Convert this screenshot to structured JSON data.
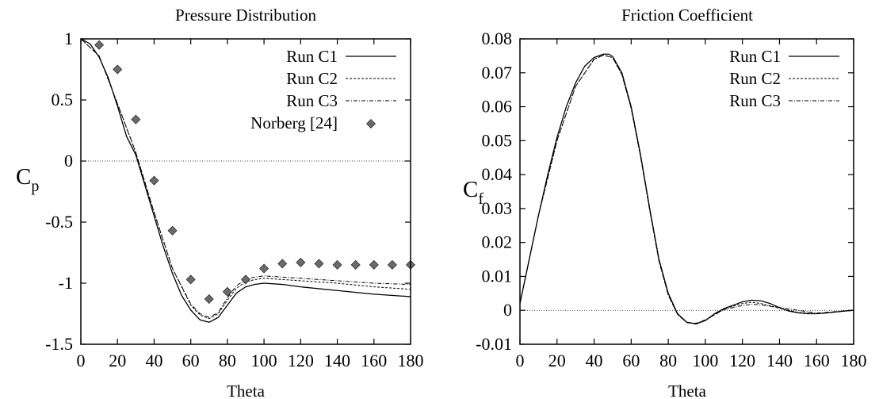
{
  "chart_data": [
    {
      "type": "line",
      "title": "Pressure Distribution",
      "xlabel": "Theta",
      "ylabel": {
        "main": "C",
        "sub": "p"
      },
      "xlim": [
        0,
        180
      ],
      "ylim": [
        -1.5,
        1
      ],
      "xticks": [
        "0",
        "20",
        "40",
        "60",
        "80",
        "100",
        "120",
        "140",
        "160",
        "180"
      ],
      "yticks": [
        "1",
        "0.5",
        "0",
        "-0.5",
        "-1",
        "-1.5"
      ],
      "legend_position": "top-right",
      "grid": false,
      "zero_line": true,
      "series": [
        {
          "name": "Run C1",
          "style": "solid",
          "x": [
            0,
            5,
            10,
            15,
            20,
            25,
            30,
            35,
            40,
            45,
            50,
            55,
            60,
            65,
            70,
            75,
            80,
            85,
            90,
            95,
            100,
            110,
            120,
            140,
            160,
            180
          ],
          "y": [
            1,
            0.96,
            0.85,
            0.68,
            0.45,
            0.2,
            0.05,
            -0.2,
            -0.45,
            -0.7,
            -0.92,
            -1.1,
            -1.22,
            -1.3,
            -1.32,
            -1.28,
            -1.18,
            -1.08,
            -1.03,
            -1.01,
            -1.0,
            -1.01,
            -1.03,
            -1.06,
            -1.09,
            -1.11
          ]
        },
        {
          "name": "Run C2",
          "style": "dashed",
          "x": [
            0,
            10,
            20,
            30,
            40,
            50,
            60,
            65,
            70,
            75,
            80,
            85,
            90,
            95,
            100,
            110,
            120,
            140,
            160,
            180
          ],
          "y": [
            1,
            0.86,
            0.47,
            0.07,
            -0.42,
            -0.88,
            -1.18,
            -1.26,
            -1.29,
            -1.25,
            -1.14,
            -1.04,
            -0.99,
            -0.97,
            -0.96,
            -0.97,
            -0.98,
            -1.0,
            -1.03,
            -1.05
          ]
        },
        {
          "name": "Run C3",
          "style": "dashdot",
          "x": [
            0,
            10,
            20,
            30,
            40,
            50,
            60,
            65,
            70,
            75,
            80,
            85,
            90,
            95,
            100,
            110,
            120,
            140,
            160,
            180
          ],
          "y": [
            1,
            0.86,
            0.47,
            0.07,
            -0.42,
            -0.88,
            -1.17,
            -1.25,
            -1.28,
            -1.24,
            -1.12,
            -1.02,
            -0.97,
            -0.95,
            -0.94,
            -0.95,
            -0.96,
            -0.98,
            -1.0,
            -1.01
          ]
        },
        {
          "name": "Norberg [24]",
          "style": "markers",
          "x": [
            10,
            20,
            30,
            40,
            50,
            60,
            70,
            80,
            90,
            100,
            110,
            120,
            130,
            140,
            150,
            160,
            170,
            180
          ],
          "y": [
            0.95,
            0.75,
            0.34,
            -0.16,
            -0.57,
            -0.97,
            -1.13,
            -1.07,
            -0.97,
            -0.88,
            -0.84,
            -0.83,
            -0.84,
            -0.85,
            -0.85,
            -0.85,
            -0.85,
            -0.85
          ]
        }
      ]
    },
    {
      "type": "line",
      "title": "Friction Coefficient",
      "xlabel": "Theta",
      "ylabel": {
        "main": "C",
        "sub": "f"
      },
      "xlim": [
        0,
        180
      ],
      "ylim": [
        -0.01,
        0.08
      ],
      "xticks": [
        "0",
        "20",
        "40",
        "60",
        "80",
        "100",
        "120",
        "140",
        "160",
        "180"
      ],
      "yticks": [
        "0.08",
        "0.07",
        "0.06",
        "0.05",
        "0.04",
        "0.03",
        "0.02",
        "0.01",
        "0",
        "-0.01"
      ],
      "legend_position": "top-right",
      "grid": false,
      "zero_line": true,
      "series": [
        {
          "name": "Run C1",
          "style": "solid",
          "x": [
            0,
            5,
            10,
            15,
            20,
            25,
            30,
            35,
            40,
            45,
            48,
            50,
            55,
            60,
            65,
            70,
            75,
            80,
            85,
            90,
            95,
            100,
            105,
            110,
            115,
            120,
            125,
            130,
            135,
            140,
            145,
            150,
            155,
            160,
            165,
            170,
            175,
            180
          ],
          "y": [
            0.002,
            0.015,
            0.028,
            0.04,
            0.051,
            0.06,
            0.067,
            0.072,
            0.0745,
            0.0755,
            0.0755,
            0.0748,
            0.07,
            0.06,
            0.046,
            0.03,
            0.015,
            0.005,
            -0.001,
            -0.0035,
            -0.004,
            -0.003,
            -0.001,
            0.0005,
            0.0015,
            0.0025,
            0.003,
            0.0028,
            0.002,
            0.0008,
            -0.0002,
            -0.0007,
            -0.001,
            -0.001,
            -0.0008,
            -0.0005,
            -0.0002,
            0.0
          ]
        },
        {
          "name": "Run C2",
          "style": "dashed",
          "x": [
            0,
            10,
            20,
            30,
            40,
            45,
            50,
            55,
            60,
            65,
            70,
            75,
            80,
            85,
            90,
            95,
            100,
            110,
            120,
            125,
            130,
            140,
            150,
            160,
            170,
            180
          ],
          "y": [
            0.002,
            0.028,
            0.05,
            0.066,
            0.074,
            0.0752,
            0.0745,
            0.0695,
            0.0595,
            0.0455,
            0.0295,
            0.0145,
            0.0045,
            -0.0012,
            -0.0036,
            -0.004,
            -0.003,
            0.0004,
            0.002,
            0.0024,
            0.002,
            0.0006,
            -0.0006,
            -0.001,
            -0.0005,
            0.0
          ]
        },
        {
          "name": "Run C3",
          "style": "dashdot",
          "x": [
            0,
            10,
            20,
            30,
            40,
            45,
            50,
            55,
            60,
            65,
            70,
            75,
            80,
            85,
            90,
            95,
            100,
            110,
            120,
            125,
            130,
            140,
            150,
            160,
            170,
            180
          ],
          "y": [
            0.002,
            0.028,
            0.05,
            0.066,
            0.074,
            0.0752,
            0.0745,
            0.0695,
            0.0595,
            0.0455,
            0.0295,
            0.0145,
            0.0045,
            -0.0012,
            -0.0036,
            -0.0038,
            -0.0028,
            0.0002,
            0.0014,
            0.0018,
            0.0016,
            0.0008,
            0.0,
            -0.0008,
            -0.0004,
            0.0
          ]
        }
      ]
    }
  ]
}
